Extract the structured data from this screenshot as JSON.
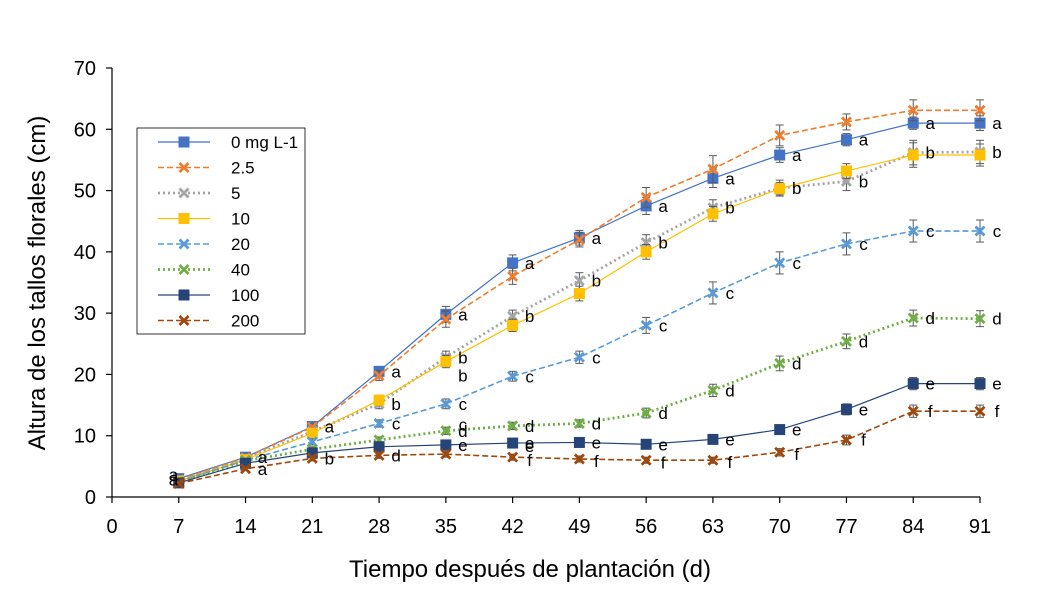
{
  "chart_data": {
    "type": "line",
    "title": "",
    "xlabel": "Tiempo después de plantación (d)",
    "ylabel": "Altura de los tallos florales (cm)",
    "xlim": [
      0,
      91
    ],
    "ylim": [
      0,
      70
    ],
    "xticks": [
      0,
      7,
      14,
      21,
      28,
      35,
      42,
      49,
      56,
      63,
      70,
      77,
      84,
      91
    ],
    "yticks": [
      0,
      10,
      20,
      30,
      40,
      50,
      60,
      70
    ],
    "x": [
      7,
      14,
      21,
      28,
      35,
      42,
      49,
      56,
      63,
      70,
      77,
      84,
      91
    ],
    "legend_position": "upper-left",
    "series": [
      {
        "name": "0 mg L-1",
        "color": "#4472C4",
        "dash": "solid",
        "marker": "square",
        "values": [
          3,
          6.5,
          11.5,
          20.5,
          29.8,
          38.2,
          42.3,
          47.5,
          52,
          55.8,
          58.3,
          61,
          61
        ],
        "errors": [
          0.3,
          0.3,
          0.5,
          0.8,
          1.3,
          1.3,
          1.2,
          1.4,
          1.5,
          1.2,
          1.0,
          1.0,
          1.2
        ],
        "labels": [
          "a",
          "a",
          "a",
          "a",
          "a",
          "a",
          "a",
          "a",
          "a",
          "a",
          "a",
          "a",
          "a"
        ]
      },
      {
        "name": "2.5",
        "color": "#ED7D31",
        "dash": "dashed",
        "marker": "x-cross",
        "values": [
          2.8,
          6.4,
          11.4,
          19.8,
          29,
          36,
          42,
          48.9,
          53.5,
          59,
          61.2,
          63.1,
          63.1
        ],
        "errors": [
          0.3,
          0.3,
          0.5,
          0.8,
          1.3,
          1.3,
          1.2,
          1.6,
          2.2,
          1.7,
          1.3,
          1.7,
          1.7
        ],
        "labels": [
          "",
          "",
          "",
          "",
          "",
          "",
          "",
          "",
          "",
          "",
          "",
          "",
          ""
        ]
      },
      {
        "name": "5",
        "color": "#A5A5A5",
        "dash": "dotted",
        "marker": "x-cross",
        "values": [
          2.7,
          6.2,
          10.7,
          15.2,
          22.8,
          29.5,
          35.3,
          41.5,
          47.2,
          50.4,
          51.5,
          56.2,
          56.3
        ],
        "errors": [
          0.3,
          0.3,
          0.5,
          0.8,
          1.0,
          1.0,
          1.3,
          1.3,
          1.3,
          1.3,
          1.5,
          2.0,
          1.9
        ],
        "labels": [
          "",
          "",
          "",
          "b",
          "b",
          "b",
          "b",
          "b",
          "b",
          "b",
          "b",
          "b",
          "b"
        ]
      },
      {
        "name": "10",
        "color": "#FFC000",
        "dash": "solid",
        "marker": "square",
        "values": [
          2.6,
          6.1,
          10.4,
          15.8,
          22.1,
          28,
          33.2,
          40,
          46.2,
          50.3,
          53.2,
          55.8,
          55.8
        ],
        "errors": [
          0.3,
          0.3,
          0.5,
          0.8,
          1.0,
          1.0,
          1.2,
          1.2,
          1.2,
          1.0,
          1.2,
          2.0,
          1.8
        ],
        "labels": [
          "",
          "",
          "",
          "",
          "",
          "",
          "",
          "",
          "",
          "",
          "",
          "",
          ""
        ]
      },
      {
        "name": "20",
        "color": "#5B9BD5",
        "dash": "dashed",
        "marker": "x-cross",
        "values": [
          2.5,
          6,
          9,
          12,
          15.2,
          19.7,
          22.8,
          28,
          33.3,
          38.2,
          41.3,
          43.4,
          43.4
        ],
        "errors": [
          0.3,
          0.3,
          0.5,
          0.6,
          0.8,
          0.8,
          1.0,
          1.3,
          1.8,
          1.8,
          1.8,
          1.8,
          1.8
        ],
        "labels": [
          "",
          "",
          "",
          "c",
          "c",
          "c",
          "c",
          "c",
          "c",
          "c",
          "c",
          "c",
          "c"
        ]
      },
      {
        "name": "40",
        "color": "#70AD47",
        "dash": "dotted",
        "marker": "x-cross",
        "values": [
          2.4,
          5.9,
          7.8,
          9.3,
          10.8,
          11.6,
          12,
          13.7,
          17.4,
          21.8,
          25.4,
          29.2,
          29.1
        ],
        "errors": [
          0.3,
          0.3,
          0.4,
          0.5,
          0.6,
          0.6,
          0.6,
          0.8,
          1.0,
          1.2,
          1.2,
          1.3,
          1.3
        ],
        "labels": [
          "",
          "",
          "",
          "",
          "d",
          "d",
          "d",
          "d",
          "d",
          "d",
          "d",
          "d",
          "d"
        ]
      },
      {
        "name": "100",
        "color": "#264478",
        "dash": "solid",
        "marker": "square",
        "values": [
          2.3,
          5.5,
          7.2,
          8.2,
          8.5,
          8.8,
          8.9,
          8.6,
          9.4,
          11,
          14.3,
          18.5,
          18.5
        ],
        "errors": [
          0.3,
          0.3,
          0.4,
          0.5,
          0.5,
          0.5,
          0.5,
          0.5,
          0.6,
          0.7,
          0.9,
          1.0,
          1.0
        ],
        "labels": [
          "",
          "",
          "",
          "",
          "e",
          "e",
          "e",
          "e",
          "e",
          "e",
          "e",
          "e",
          "e"
        ]
      },
      {
        "name": "200",
        "color": "#9E480E",
        "dash": "dashed",
        "marker": "x-cross",
        "values": [
          2.2,
          4.6,
          6.3,
          6.8,
          7,
          6.5,
          6.2,
          6,
          6,
          7.3,
          9.3,
          14,
          14
        ],
        "errors": [
          0.3,
          0.3,
          0.4,
          0.5,
          0.5,
          0.5,
          0.5,
          0.5,
          0.5,
          0.6,
          0.8,
          1.0,
          1.0
        ],
        "labels": [
          "a",
          "a",
          "b",
          "d",
          "",
          "",
          "",
          "",
          "",
          "",
          "",
          "f",
          "f"
        ]
      }
    ],
    "annotations": [
      {
        "text": "b",
        "x": 35,
        "y": 19.8
      },
      {
        "text": "c",
        "x": 35,
        "y": 11.8
      },
      {
        "text": "e",
        "x": 42,
        "y": 8.3
      },
      {
        "text": "f",
        "x": 42,
        "y": 6.0
      },
      {
        "text": "f",
        "x": 49,
        "y": 5.9
      },
      {
        "text": "f",
        "x": 56,
        "y": 5.6
      },
      {
        "text": "f",
        "x": 63,
        "y": 5.7
      },
      {
        "text": "f",
        "x": 70,
        "y": 7.0
      },
      {
        "text": "f",
        "x": 77,
        "y": 9.4
      }
    ]
  }
}
